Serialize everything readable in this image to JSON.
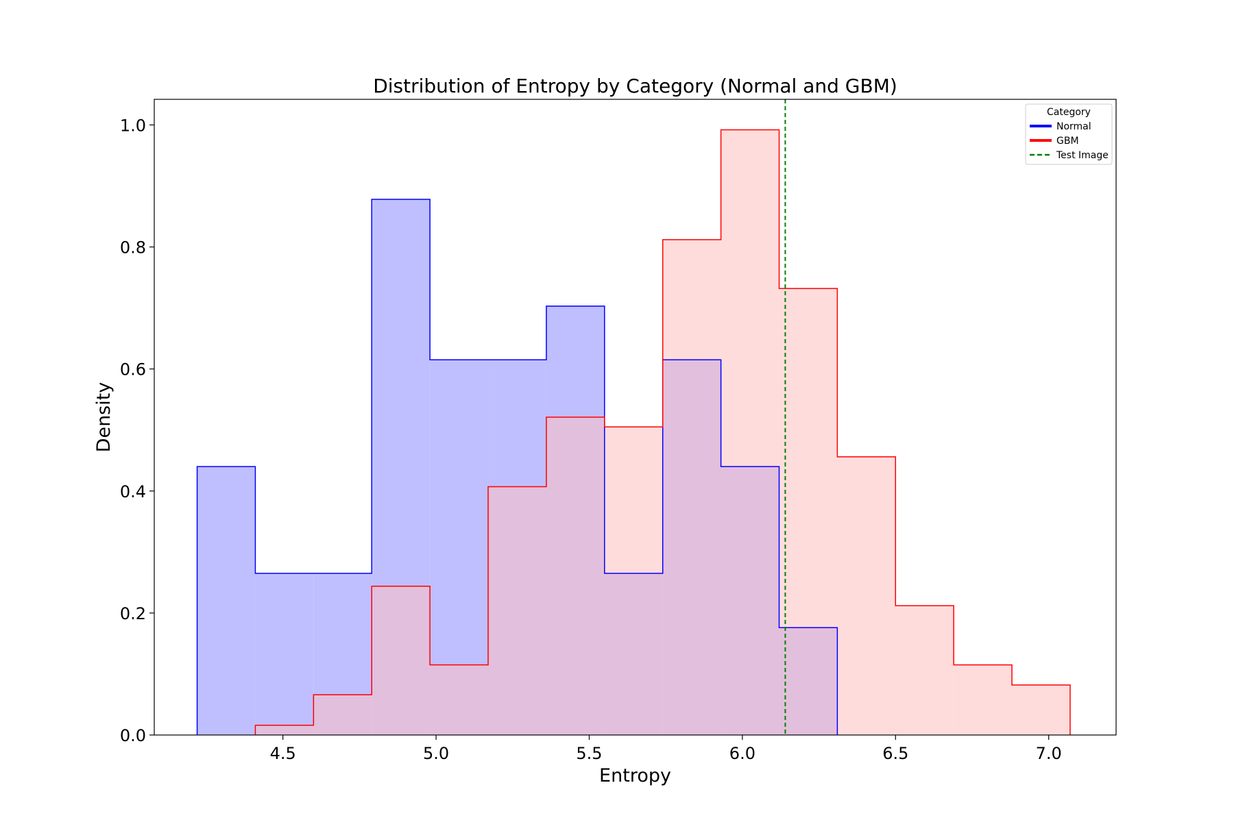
{
  "chart_data": {
    "type": "histogram",
    "title": "Distribution of Entropy by Category (Normal and GBM)",
    "xlabel": "Entropy",
    "ylabel": "Density",
    "xlim": [
      4.08,
      7.22
    ],
    "ylim": [
      0.0,
      1.042
    ],
    "xticks": [
      4.5,
      5.0,
      5.5,
      6.0,
      6.5,
      7.0
    ],
    "xtick_labels": [
      "4.5",
      "5.0",
      "5.5",
      "6.0",
      "6.5",
      "7.0"
    ],
    "yticks": [
      0.0,
      0.2,
      0.4,
      0.6,
      0.8,
      1.0
    ],
    "ytick_labels": [
      "0.0",
      "0.2",
      "0.4",
      "0.6",
      "0.8",
      "1.0"
    ],
    "grid": false,
    "legend": {
      "title": "Category",
      "placement": "top-right",
      "entries": [
        {
          "label": "Normal",
          "style": "solid",
          "color": "#0000ff"
        },
        {
          "label": "GBM",
          "style": "solid",
          "color": "#ff0000"
        },
        {
          "label": "Test Image",
          "style": "dashed",
          "color": "#008000"
        }
      ]
    },
    "series": [
      {
        "name": "Normal",
        "color": "#0000ff",
        "fill": "#bfbfff",
        "bin_edges": [
          4.22,
          4.41,
          4.6,
          4.79,
          4.98,
          5.17,
          5.36,
          5.55,
          5.74,
          5.93,
          6.12,
          6.31
        ],
        "values": [
          0.44,
          0.265,
          0.265,
          0.878,
          0.615,
          0.615,
          0.703,
          0.265,
          0.615,
          0.44,
          0.176
        ]
      },
      {
        "name": "GBM",
        "color": "#ff0000",
        "fill": "#ffbfbf",
        "bin_edges": [
          4.41,
          4.6,
          4.79,
          4.98,
          5.17,
          5.36,
          5.55,
          5.74,
          5.93,
          6.12,
          6.31,
          6.5,
          6.69,
          6.88,
          7.07
        ],
        "values": [
          0.016,
          0.066,
          0.244,
          0.115,
          0.407,
          0.521,
          0.505,
          0.812,
          0.992,
          0.732,
          0.456,
          0.212,
          0.115,
          0.082
        ]
      }
    ],
    "reference_line": {
      "name": "Test Image",
      "x": 6.14,
      "color": "#008000",
      "style": "dashed"
    }
  }
}
